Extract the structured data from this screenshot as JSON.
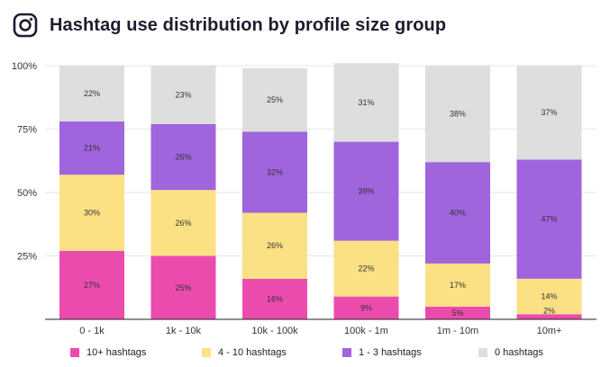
{
  "header": {
    "title": "Hashtag use distribution by profile size group",
    "icon": "instagram-icon"
  },
  "chart_data": {
    "type": "bar",
    "stacked": true,
    "title": "Hashtag use distribution by profile size group",
    "xlabel": "",
    "ylabel": "",
    "ylim": [
      0,
      100
    ],
    "y_ticks": [
      "100%",
      "75%",
      "50%",
      "25%"
    ],
    "grid": true,
    "legend_position": "bottom",
    "categories": [
      "0 - 1k",
      "1k - 10k",
      "10k - 100k",
      "100k - 1m",
      "1m - 10m",
      "10m+"
    ],
    "series": [
      {
        "name": "10+ hashtags",
        "color": "#ec4bae",
        "values": [
          27,
          25,
          16,
          9,
          5,
          2
        ],
        "labels": [
          "27%",
          "25%",
          "16%",
          "9%",
          "5%",
          "2%"
        ]
      },
      {
        "name": "4 - 10 hashtags",
        "color": "#fbe084",
        "values": [
          30,
          26,
          26,
          22,
          17,
          14
        ],
        "labels": [
          "30%",
          "26%",
          "26%",
          "22%",
          "17%",
          "14%"
        ]
      },
      {
        "name": "1 - 3 hashtags",
        "color": "#a064dc",
        "values": [
          21,
          26,
          32,
          39,
          40,
          47
        ],
        "labels": [
          "21%",
          "26%",
          "32%",
          "39%",
          "40%",
          "47%"
        ]
      },
      {
        "name": "0 hashtags",
        "color": "#dedede",
        "values": [
          22,
          23,
          25,
          31,
          38,
          37
        ],
        "labels": [
          "22%",
          "23%",
          "25%",
          "31%",
          "38%",
          "37%"
        ]
      }
    ]
  }
}
